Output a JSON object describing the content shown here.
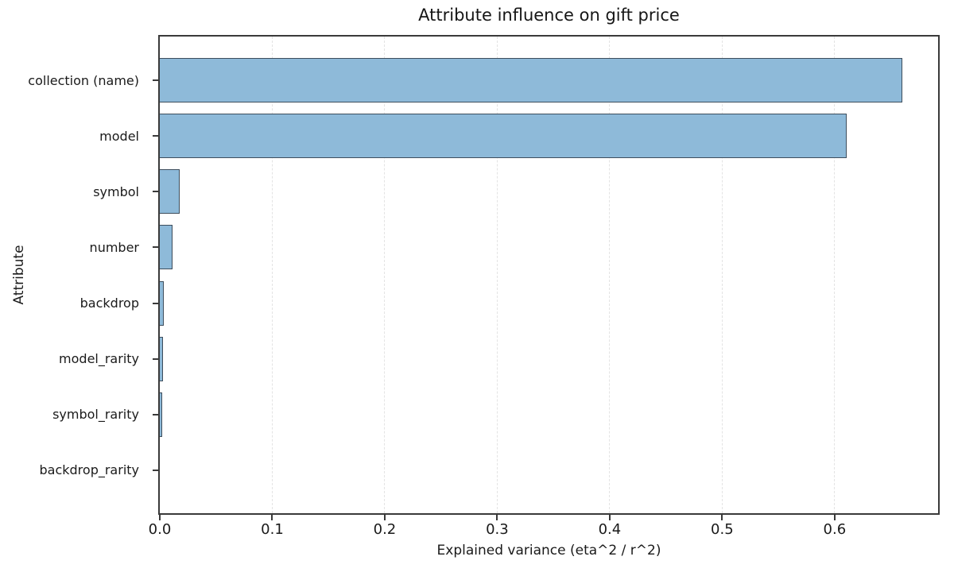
{
  "chart_data": {
    "type": "bar",
    "orientation": "horizontal",
    "title": "Attribute influence on gift price",
    "xlabel": "Explained variance (eta^2 / r^2)",
    "ylabel": "Attribute",
    "categories": [
      "collection (name)",
      "model",
      "symbol",
      "number",
      "backdrop",
      "model_rarity",
      "symbol_rarity",
      "backdrop_rarity"
    ],
    "values": [
      0.66,
      0.611,
      0.018,
      0.011,
      0.0035,
      0.003,
      0.002,
      0.0004
    ],
    "xticks": [
      0.0,
      0.1,
      0.2,
      0.3,
      0.4,
      0.5,
      0.6
    ],
    "xtick_labels": [
      "0.0",
      "0.1",
      "0.2",
      "0.3",
      "0.4",
      "0.5",
      "0.6"
    ],
    "xlim": [
      0,
      0.692
    ],
    "grid": {
      "axis": "x",
      "style": "dashed",
      "color": "#e3e3e3"
    },
    "legend": "none",
    "colors": {
      "bar_fill": "#8ebad9",
      "bar_edge": "#3d4d5c",
      "spine": "#3a3a3a",
      "grid": "#e3e3e3",
      "text": "#1a1a1a",
      "background": "#ffffff"
    }
  }
}
